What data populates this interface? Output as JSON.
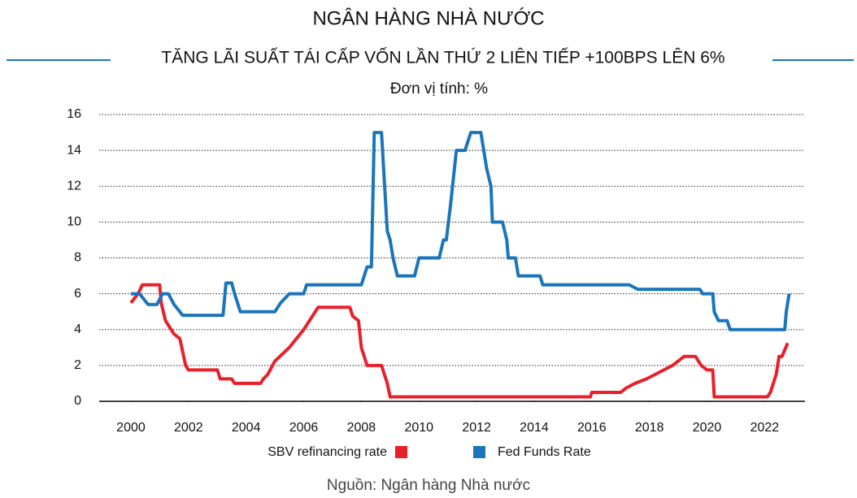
{
  "chart_data": {
    "type": "line",
    "title": "NGÂN HÀNG NHÀ NƯỚC",
    "subtitle": "TĂNG LÃI SUẤT TÁI CẤP VỐN LẦN THỨ 2 LIÊN TIẾP +100BPS LÊN 6%",
    "unit_note": "Đơn vị tính: %",
    "source": "Nguồn: Ngân hàng Nhà nước",
    "xlim": [
      1998.9,
      2023.4
    ],
    "xticks": [
      2000,
      2002,
      2004,
      2006,
      2008,
      2010,
      2012,
      2014,
      2016,
      2018,
      2020,
      2022
    ],
    "ylim": [
      0,
      16
    ],
    "yticks": [
      0,
      2,
      4,
      6,
      8,
      10,
      12,
      14,
      16
    ],
    "grid": true,
    "series": [
      {
        "name": "SBV refinancing rate",
        "color": "#e8202a",
        "x": [
          2000,
          2000.25,
          2000.4,
          2001,
          2001.05,
          2001.2,
          2001.5,
          2001.7,
          2001.9,
          2002,
          2003,
          2003.1,
          2003.5,
          2003.6,
          2004.5,
          2004.6,
          2004.75,
          2005,
          2005.5,
          2006,
          2006.3,
          2006.5,
          2007.6,
          2007.7,
          2007.9,
          2008,
          2008.2,
          2008.7,
          2008.9,
          2009,
          2015.95,
          2016,
          2017,
          2017.2,
          2017.5,
          2017.9,
          2018.2,
          2018.5,
          2018.8,
          2019,
          2019.2,
          2019.6,
          2019.8,
          2020,
          2020.2,
          2020.25,
          2022.1,
          2022.2,
          2022.4,
          2022.5,
          2022.6,
          2022.8
        ],
        "values": [
          5.5,
          6,
          6.5,
          6.5,
          5.5,
          4.5,
          3.75,
          3.5,
          2,
          1.75,
          1.75,
          1.25,
          1.25,
          1,
          1,
          1.25,
          1.5,
          2.25,
          3,
          4,
          4.75,
          5.25,
          5.25,
          4.75,
          4.5,
          3,
          2,
          2,
          1,
          0.25,
          0.25,
          0.5,
          0.5,
          0.75,
          1,
          1.25,
          1.5,
          1.75,
          2,
          2.25,
          2.5,
          2.5,
          2,
          1.75,
          1.75,
          0.25,
          0.25,
          0.5,
          1.5,
          2.5,
          2.5,
          3.25
        ]
      },
      {
        "name": "Fed Funds Rate",
        "color": "#1a75bb",
        "x": [
          2000,
          2000.3,
          2000.6,
          2000.9,
          2001.1,
          2001.3,
          2001.5,
          2001.8,
          2003.2,
          2003.3,
          2003.5,
          2003.6,
          2003.8,
          2005,
          2005.2,
          2005.5,
          2006,
          2006.1,
          2008,
          2008.2,
          2008.35,
          2008.45,
          2008.7,
          2008.9,
          2009,
          2009.1,
          2009.25,
          2009.85,
          2010,
          2010.7,
          2010.85,
          2010.95,
          2011.1,
          2011.3,
          2011.6,
          2011.8,
          2012.15,
          2012.35,
          2012.5,
          2012.55,
          2012.9,
          2013.05,
          2013.1,
          2013.35,
          2013.45,
          2014.2,
          2014.3,
          2017.3,
          2017.6,
          2019.75,
          2019.85,
          2020.2,
          2020.25,
          2020.4,
          2020.7,
          2020.8,
          2022.7,
          2022.75,
          2022.85
        ],
        "values": [
          6,
          6,
          5.4,
          5.4,
          6,
          6,
          5.4,
          4.8,
          4.8,
          6.6,
          6.6,
          6,
          5,
          5,
          5.5,
          6,
          6,
          6.5,
          6.5,
          7.5,
          7.5,
          15,
          15,
          9.5,
          9,
          8,
          7,
          7,
          8,
          8,
          9,
          9,
          11,
          14,
          14,
          15,
          15,
          13,
          12,
          10,
          10,
          9,
          8,
          8,
          7,
          7,
          6.5,
          6.5,
          6.25,
          6.25,
          6,
          6,
          5,
          4.5,
          4.5,
          4,
          4,
          5,
          6
        ]
      }
    ]
  }
}
